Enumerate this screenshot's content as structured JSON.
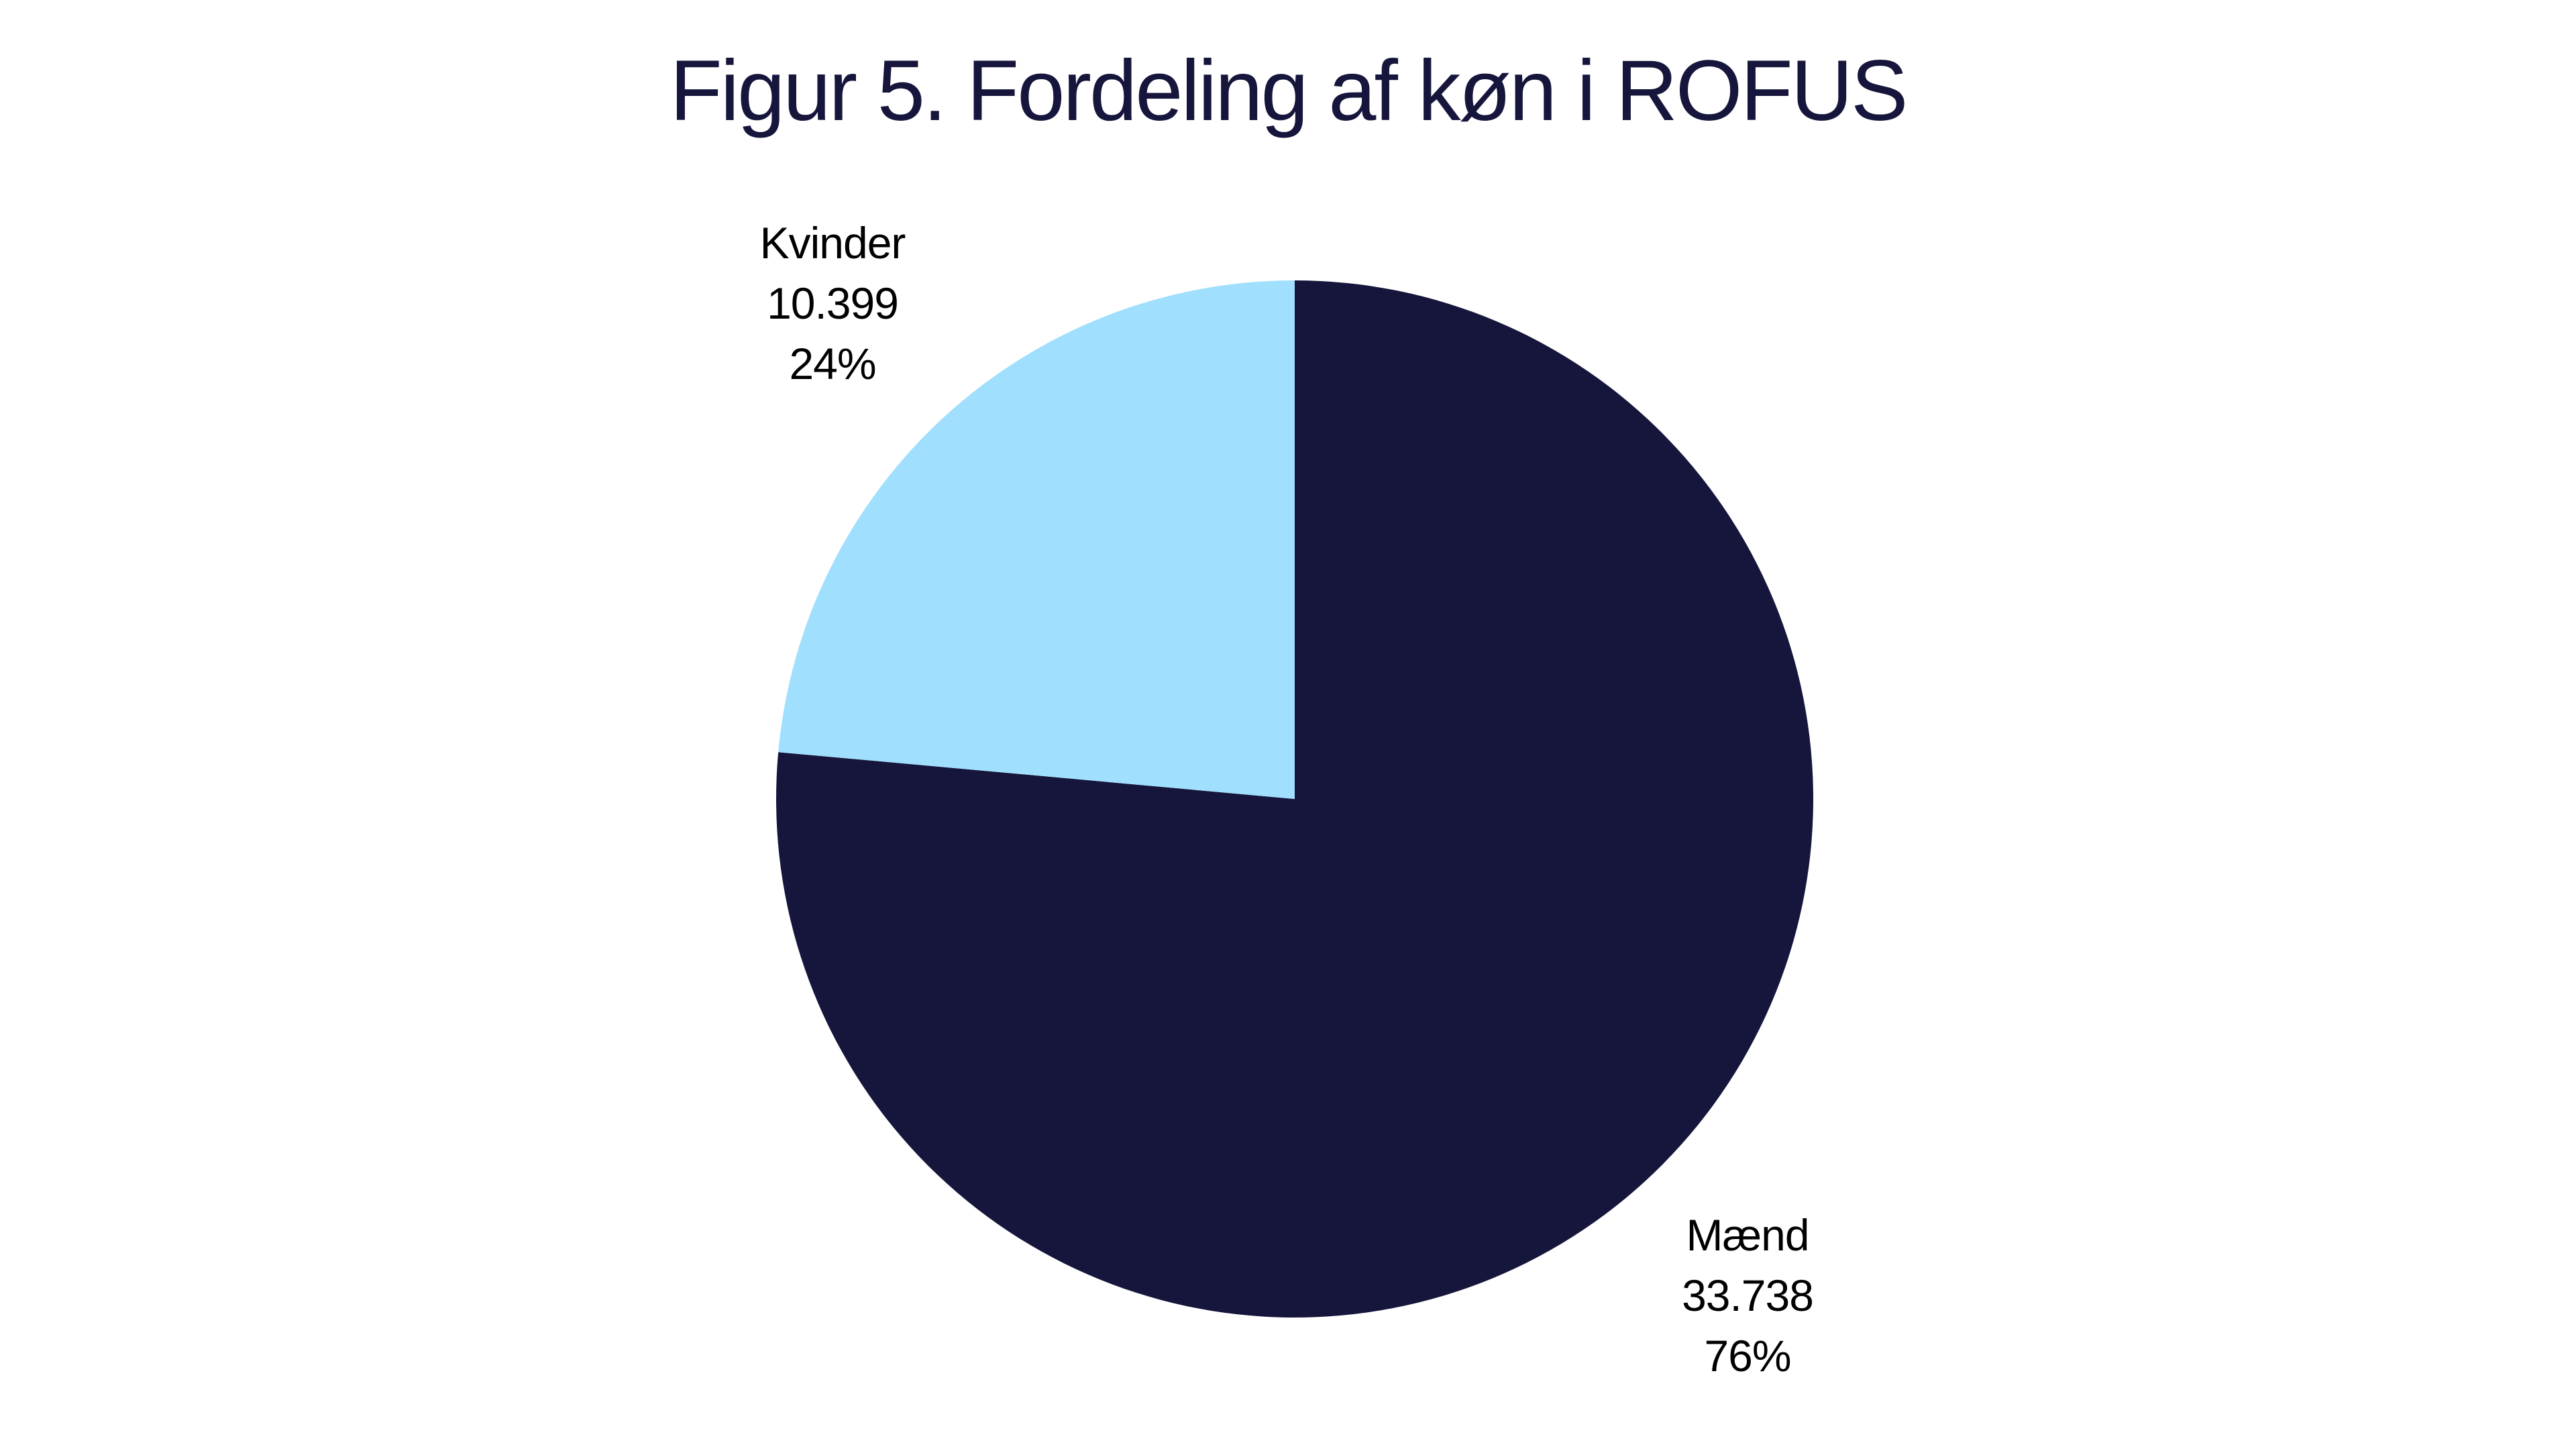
{
  "chart_data": {
    "type": "pie",
    "title": "Figur 5. Fordeling af køn i ROFUS",
    "start": "top",
    "direction": "clockwise",
    "slices": [
      {
        "label": "Mænd",
        "value": 33738,
        "value_label": "33.738",
        "percent_label": "76%",
        "color": "#16163d"
      },
      {
        "label": "Kvinder",
        "value": 10399,
        "value_label": "10.399",
        "percent_label": "24%",
        "color": "#a0dffd"
      }
    ]
  }
}
